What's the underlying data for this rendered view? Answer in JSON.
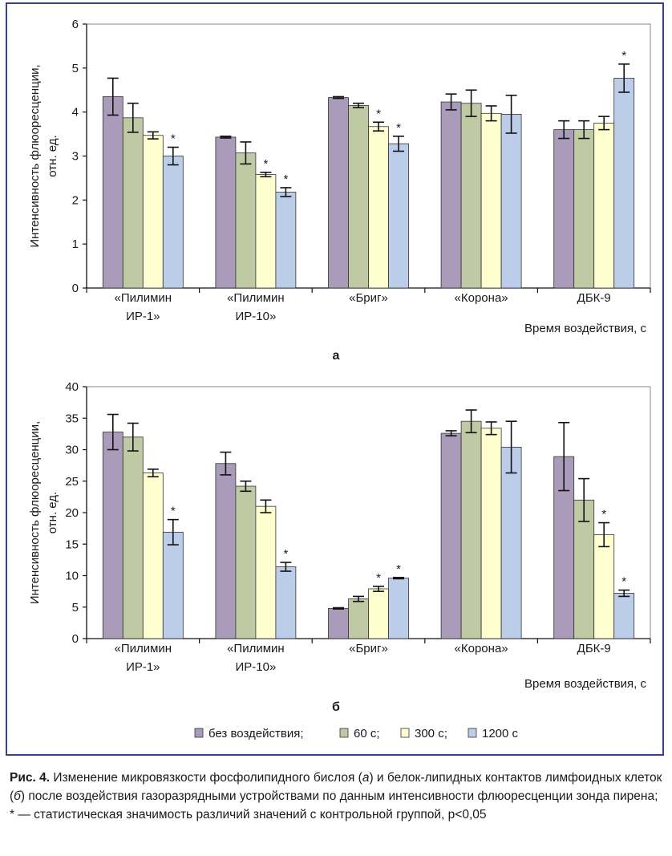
{
  "legend": {
    "items": [
      "без воздействия;",
      "60 с;",
      "300 с;",
      "1200 с"
    ],
    "colors": [
      "#a99bb9",
      "#bfc9a4",
      "#ffffd0",
      "#bccde9"
    ]
  },
  "caption": {
    "label": "Рис. 4.",
    "text_1": " Изменение микровязкости фосфолипидного бислоя (",
    "a": "а",
    "text_2": ") и белок-липидных контактов лимфоидных клеток (",
    "b": "б",
    "text_3": ") после воздействия газоразрядными устройствами по данным интенсивности флюоресценции зонда пирена; * — статистическая значимость различий значений с контрольной группой, p<0,05"
  },
  "chart_data": [
    {
      "type": "bar",
      "panel_label": "а",
      "categories": [
        [
          "«Пилимин",
          "ИР-1»"
        ],
        [
          "«Пилимин",
          "ИР-10»"
        ],
        [
          "«Бриг»"
        ],
        [
          "«Корона»"
        ],
        [
          "ДБК-9"
        ]
      ],
      "ylabel": [
        "Интенсивность флюоресценции,",
        "отн. ед."
      ],
      "xlabel": "Время воздействия, с",
      "ylim": [
        0,
        6
      ],
      "yticks": [
        0,
        1,
        2,
        3,
        4,
        5,
        6
      ],
      "grid": false,
      "series": [
        {
          "name": "без воздействия",
          "values": [
            4.35,
            3.43,
            4.33,
            4.23,
            3.6
          ],
          "err": [
            0.42,
            0.02,
            0.02,
            0.18,
            0.2
          ],
          "sig": [
            false,
            false,
            false,
            false,
            false
          ]
        },
        {
          "name": "60 с",
          "values": [
            3.87,
            3.07,
            4.15,
            4.2,
            3.6
          ],
          "err": [
            0.33,
            0.25,
            0.05,
            0.3,
            0.2
          ],
          "sig": [
            false,
            false,
            false,
            false,
            false
          ]
        },
        {
          "name": "300 с",
          "values": [
            3.47,
            2.58,
            3.67,
            3.97,
            3.75
          ],
          "err": [
            0.08,
            0.05,
            0.1,
            0.17,
            0.15
          ],
          "sig": [
            false,
            true,
            true,
            false,
            false
          ]
        },
        {
          "name": "1200 с",
          "values": [
            3.0,
            2.18,
            3.28,
            3.95,
            4.77
          ],
          "err": [
            0.2,
            0.1,
            0.17,
            0.43,
            0.32
          ],
          "sig": [
            true,
            true,
            true,
            false,
            true
          ]
        }
      ]
    },
    {
      "type": "bar",
      "panel_label": "б",
      "categories": [
        [
          "«Пилимин",
          "ИР-1»"
        ],
        [
          "«Пилимин",
          "ИР-10»"
        ],
        [
          "«Бриг»"
        ],
        [
          "«Корона»"
        ],
        [
          "ДБК-9"
        ]
      ],
      "ylabel": [
        "Интенсивность флюоресценции,",
        "отн. ед."
      ],
      "xlabel": "Время воздействия, с",
      "ylim": [
        0,
        40
      ],
      "yticks": [
        0,
        5,
        10,
        15,
        20,
        25,
        30,
        35,
        40
      ],
      "grid": false,
      "series": [
        {
          "name": "без воздействия",
          "values": [
            32.8,
            27.8,
            4.8,
            32.6,
            28.9
          ],
          "err": [
            2.8,
            1.8,
            0.1,
            0.4,
            5.4
          ],
          "sig": [
            false,
            false,
            false,
            false,
            false
          ]
        },
        {
          "name": "60 с",
          "values": [
            32.0,
            24.2,
            6.3,
            34.5,
            22.0
          ],
          "err": [
            2.2,
            0.8,
            0.4,
            1.8,
            3.4
          ],
          "sig": [
            false,
            false,
            false,
            false,
            false
          ]
        },
        {
          "name": "300 с",
          "values": [
            26.3,
            21.0,
            7.9,
            33.4,
            16.5
          ],
          "err": [
            0.6,
            1.0,
            0.4,
            1.0,
            1.9
          ],
          "sig": [
            false,
            false,
            true,
            false,
            true
          ]
        },
        {
          "name": "1200 с",
          "values": [
            16.9,
            11.4,
            9.6,
            30.4,
            7.2
          ],
          "err": [
            2.0,
            0.7,
            0.1,
            4.1,
            0.5
          ],
          "sig": [
            true,
            true,
            true,
            false,
            true
          ]
        }
      ]
    }
  ]
}
